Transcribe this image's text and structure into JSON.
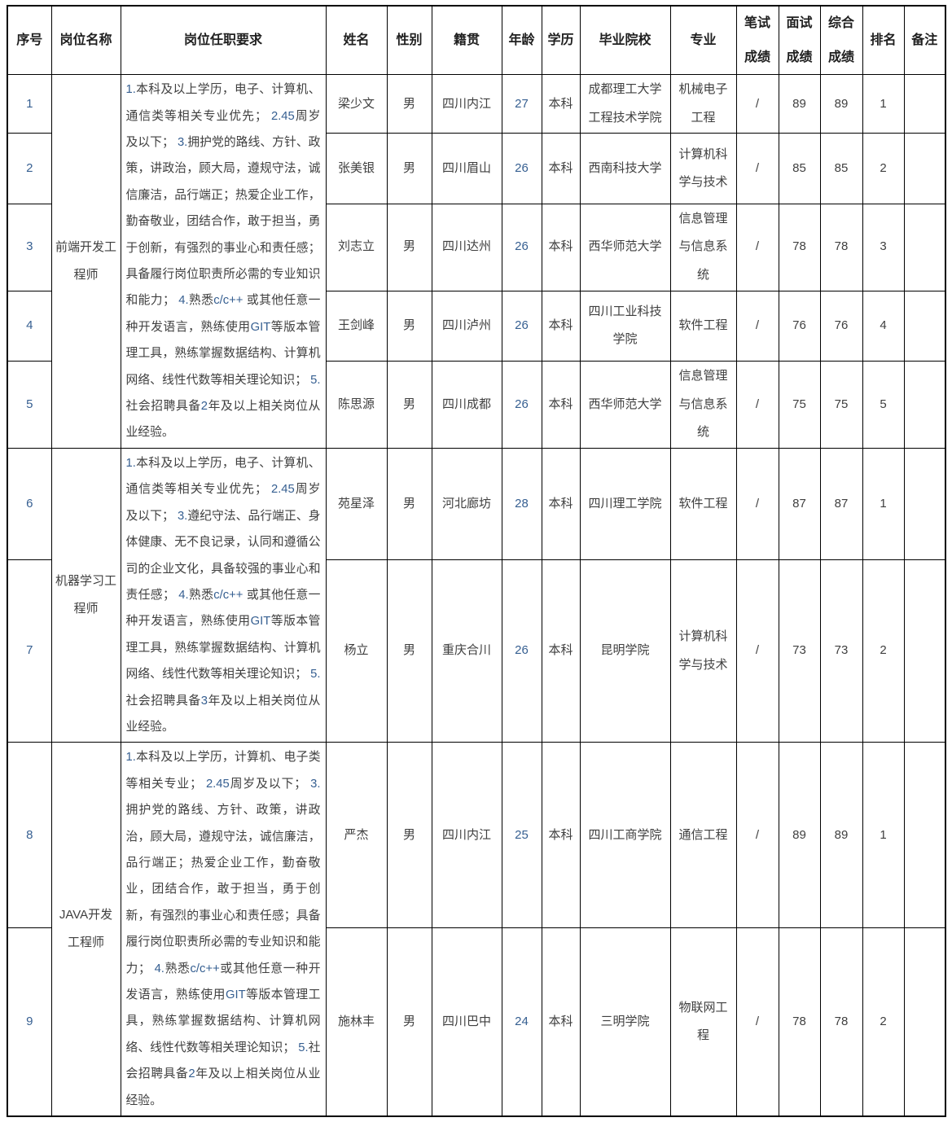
{
  "colors": {
    "num-blue": "#365f91",
    "body-text": "#3f3f3f",
    "header-text": "#1f1f1f",
    "border": "#000000"
  },
  "table": {
    "headers": [
      "序号",
      "岗位名称",
      "岗位任职要求",
      "姓名",
      "性别",
      "籍贯",
      "年龄",
      "学历",
      "毕业院校",
      "专业",
      "笔试成绩",
      "面试成绩",
      "综合成绩",
      "排名",
      "备注"
    ],
    "groups": [
      {
        "position": "前端开发工程师",
        "requirements": "1.本科及以上学历，电子、计算机、通信类等相关专业优先； 2.45周岁及以下； 3.拥护党的路线、方针、政策，讲政治，顾大局，遵规守法，诚信廉洁，品行端正；热爱企业工作，勤奋敬业，团结合作，敢于担当，勇于创新，有强烈的事业心和责任感；具备履行岗位职责所必需的专业知识和能力； 4.熟悉c/c++ 或其他任意一种开发语言，熟练使用GIT等版本管理工具，熟练掌握数据结构、计算机网络、线性代数等相关理论知识； 5.社会招聘具备2年及以上相关岗位从业经验。",
        "rows": [
          {
            "no": "1",
            "name": "梁少文",
            "gender": "男",
            "hometown": "四川内江",
            "age": "27",
            "education": "本科",
            "school": "成都理工大学工程技术学院",
            "major": "机械电子工程",
            "written": "/",
            "interview": "89",
            "overall": "89",
            "rank": "1",
            "remark": ""
          },
          {
            "no": "2",
            "name": "张美银",
            "gender": "男",
            "hometown": "四川眉山",
            "age": "26",
            "education": "本科",
            "school": "西南科技大学",
            "major": "计算机科学与技术",
            "written": "/",
            "interview": "85",
            "overall": "85",
            "rank": "2",
            "remark": ""
          },
          {
            "no": "3",
            "name": "刘志立",
            "gender": "男",
            "hometown": "四川达州",
            "age": "26",
            "education": "本科",
            "school": "西华师范大学",
            "major": "信息管理与信息系统",
            "written": "/",
            "interview": "78",
            "overall": "78",
            "rank": "3",
            "remark": ""
          },
          {
            "no": "4",
            "name": "王剑峰",
            "gender": "男",
            "hometown": "四川泸州",
            "age": "26",
            "education": "本科",
            "school": "四川工业科技学院",
            "major": "软件工程",
            "written": "/",
            "interview": "76",
            "overall": "76",
            "rank": "4",
            "remark": ""
          },
          {
            "no": "5",
            "name": "陈思源",
            "gender": "男",
            "hometown": "四川成都",
            "age": "26",
            "education": "本科",
            "school": "西华师范大学",
            "major": "信息管理与信息系统",
            "written": "/",
            "interview": "75",
            "overall": "75",
            "rank": "5",
            "remark": ""
          }
        ]
      },
      {
        "position": "机器学习工程师",
        "requirements": "1.本科及以上学历，电子、计算机、通信类等相关专业优先； 2.45周岁及以下； 3.遵纪守法、品行端正、身体健康、无不良记录，认同和遵循公司的企业文化，具备较强的事业心和责任感； 4.熟悉c/c++ 或其他任意一种开发语言，熟练使用GIT等版本管理工具，熟练掌握数据结构、计算机网络、线性代数等相关理论知识； 5.社会招聘具备3年及以上相关岗位从业经验。",
        "rows": [
          {
            "no": "6",
            "name": "苑星泽",
            "gender": "男",
            "hometown": "河北廊坊",
            "age": "28",
            "education": "本科",
            "school": "四川理工学院",
            "major": "软件工程",
            "written": "/",
            "interview": "87",
            "overall": "87",
            "rank": "1",
            "remark": ""
          },
          {
            "no": "7",
            "name": "杨立",
            "gender": "男",
            "hometown": "重庆合川",
            "age": "26",
            "education": "本科",
            "school": "昆明学院",
            "major": "计算机科学与技术",
            "written": "/",
            "interview": "73",
            "overall": "73",
            "rank": "2",
            "remark": ""
          }
        ]
      },
      {
        "position": "JAVA开发工程师",
        "requirements": "1.本科及以上学历，计算机、电子类等相关专业； 2.45周岁及以下； 3.拥护党的路线、方针、政策，讲政治，顾大局，遵规守法，诚信廉洁，品行端正；热爱企业工作，勤奋敬业，团结合作，敢于担当，勇于创新，有强烈的事业心和责任感；具备履行岗位职责所必需的专业知识和能力； 4.熟悉c/c++或其他任意一种开发语言，熟练使用GIT等版本管理工具，熟练掌握数据结构、计算机网络、线性代数等相关理论知识； 5.社会招聘具备2年及以上相关岗位从业经验。",
        "rows": [
          {
            "no": "8",
            "name": "严杰",
            "gender": "男",
            "hometown": "四川内江",
            "age": "25",
            "education": "本科",
            "school": "四川工商学院",
            "major": "通信工程",
            "written": "/",
            "interview": "89",
            "overall": "89",
            "rank": "1",
            "remark": ""
          },
          {
            "no": "9",
            "name": "施林丰",
            "gender": "男",
            "hometown": "四川巴中",
            "age": "24",
            "education": "本科",
            "school": "三明学院",
            "major": "物联网工程",
            "written": "/",
            "interview": "78",
            "overall": "78",
            "rank": "2",
            "remark": ""
          }
        ]
      }
    ]
  }
}
